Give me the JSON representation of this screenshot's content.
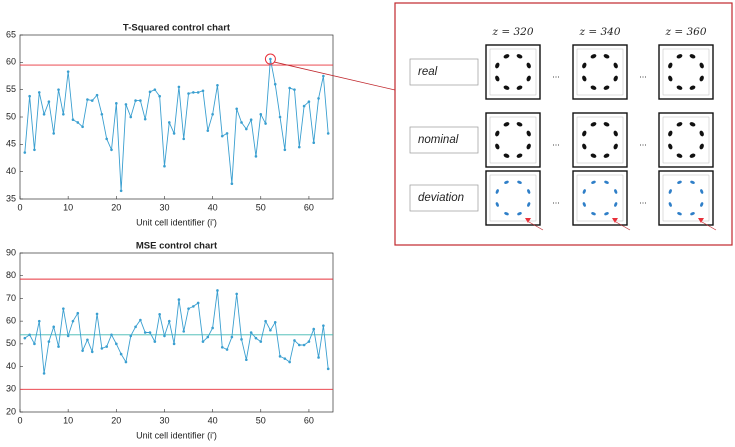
{
  "chart_data": [
    {
      "type": "line",
      "title": "T-Squared control chart",
      "x_label": "Unit cell identifier (i')",
      "x": [
        1,
        2,
        3,
        4,
        5,
        6,
        7,
        8,
        9,
        10,
        11,
        12,
        13,
        14,
        15,
        16,
        17,
        18,
        19,
        20,
        21,
        22,
        23,
        24,
        25,
        26,
        27,
        28,
        29,
        30,
        31,
        32,
        33,
        34,
        35,
        36,
        37,
        38,
        39,
        40,
        41,
        42,
        43,
        44,
        45,
        46,
        47,
        48,
        49,
        50,
        51,
        52,
        53,
        54,
        55,
        56,
        57,
        58,
        59,
        60,
        61,
        62,
        63,
        64
      ],
      "series": [
        {
          "color": "#3a9fd0",
          "values": [
            43.5,
            53.8,
            44,
            54.5,
            50.5,
            52.8,
            47,
            55,
            50.5,
            58.3,
            49.5,
            49,
            48.2,
            53.2,
            53,
            54,
            50.5,
            46,
            44,
            52.5,
            36.5,
            52.3,
            50,
            53,
            53,
            49.6,
            54.6,
            55,
            53.8,
            41,
            49,
            47,
            55.5,
            46,
            54.3,
            54.5,
            54.5,
            54.8,
            47.5,
            50.5,
            55.8,
            46.5,
            47,
            37.8,
            51.5,
            49,
            47.8,
            49.5,
            42.8,
            50.5,
            48.8,
            60.6,
            56,
            50,
            44,
            55.3,
            55,
            44.5,
            52,
            52.8,
            45.3,
            53.4,
            57.5,
            47
          ]
        }
      ],
      "ucl": 59.5,
      "limit_color": "#e8303a",
      "xlim": [
        0,
        65
      ],
      "ylim": [
        35,
        65
      ],
      "xticks": [
        0,
        10,
        20,
        30,
        40,
        50,
        60
      ],
      "yticks": [
        35,
        40,
        45,
        50,
        55,
        60,
        65
      ]
    },
    {
      "type": "line",
      "title": "MSE control chart",
      "x_label": "Unit cell identifier (i')",
      "x": [
        1,
        2,
        3,
        4,
        5,
        6,
        7,
        8,
        9,
        10,
        11,
        12,
        13,
        14,
        15,
        16,
        17,
        18,
        19,
        20,
        21,
        22,
        23,
        24,
        25,
        26,
        27,
        28,
        29,
        30,
        31,
        32,
        33,
        34,
        35,
        36,
        37,
        38,
        39,
        40,
        41,
        42,
        43,
        44,
        45,
        46,
        47,
        48,
        49,
        50,
        51,
        52,
        53,
        54,
        55,
        56,
        57,
        58,
        59,
        60,
        61,
        62,
        63,
        64
      ],
      "series": [
        {
          "color": "#3a9fd0",
          "values": [
            52.5,
            54,
            50,
            60,
            37,
            51,
            57.5,
            48.8,
            65.5,
            53.5,
            60,
            63.5,
            47,
            51.8,
            46.5,
            63.2,
            48,
            48.8,
            54,
            50,
            45.5,
            42,
            53.5,
            57.5,
            60.5,
            55,
            55,
            51,
            63,
            53.5,
            60,
            50,
            69.5,
            55.5,
            65.5,
            66.5,
            68,
            51,
            53,
            57,
            73.5,
            48.5,
            47.5,
            53,
            72,
            52,
            43,
            55,
            52.5,
            51,
            60,
            56,
            59.5,
            44.5,
            43.5,
            42,
            51.5,
            49.5,
            49.5,
            51,
            56.5,
            44,
            58,
            39
          ]
        }
      ],
      "ucl": 78.5,
      "lcl": 30,
      "center": 54,
      "limit_color": "#e8303a",
      "center_color": "#3fb8b0",
      "xlim": [
        0,
        65
      ],
      "ylim": [
        20,
        90
      ],
      "xticks": [
        0,
        10,
        20,
        30,
        40,
        50,
        60
      ],
      "yticks": [
        20,
        30,
        40,
        50,
        60,
        70,
        80,
        90
      ]
    }
  ],
  "panel": {
    "columns": [
      "z = 320",
      "z = 340",
      "z = 360"
    ],
    "rows": [
      "real",
      "nominal",
      "deviation"
    ],
    "ellipsis": "..."
  }
}
